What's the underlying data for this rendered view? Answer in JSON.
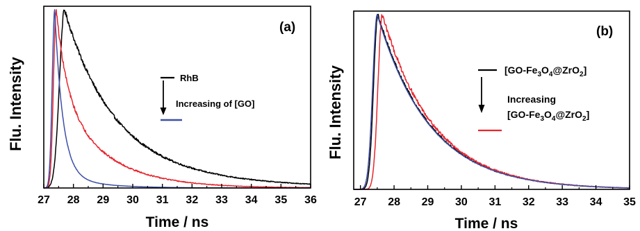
{
  "chart_data": [
    {
      "type": "line",
      "panel_label": "(a)",
      "ylabel": "Flu. Intensity",
      "xlabel": "Time / ns",
      "xlim": [
        27,
        36
      ],
      "xticks": [
        "27",
        "28",
        "29",
        "30",
        "31",
        "32",
        "33",
        "34",
        "35",
        "36"
      ],
      "ylim": [
        0,
        1.02
      ],
      "legend": {
        "placement": "center-right",
        "first": "RhB",
        "arrow_text": "Increasing of [GO]"
      },
      "series": [
        {
          "name": "RhB",
          "color": "#000000",
          "peak": 27.7,
          "rise": 0.24,
          "decay": [
            [
              0.7,
              1.5
            ],
            [
              0.3,
              3.0
            ]
          ],
          "noise": 0.012,
          "x": [
            27.2,
            27.4,
            27.7,
            28.0,
            28.5,
            29.0,
            30.0,
            31.0,
            32.0,
            33.0,
            34.0,
            35.0,
            36.0
          ],
          "values": [
            0.05,
            0.55,
            1.0,
            0.9,
            0.74,
            0.61,
            0.42,
            0.28,
            0.17,
            0.1,
            0.05,
            0.025,
            0.01
          ]
        },
        {
          "name": "",
          "color": "#e8242c",
          "peak": 27.42,
          "rise": 0.13,
          "decay": [
            [
              0.45,
              0.35
            ],
            [
              0.55,
              1.55
            ]
          ],
          "noise": 0.012,
          "x": [
            27.2,
            27.42,
            27.8,
            28.0,
            28.5,
            29.0,
            30.0,
            31.0,
            32.0,
            33.0,
            34.0,
            35.0,
            36.0
          ],
          "values": [
            0.2,
            1.0,
            0.72,
            0.6,
            0.41,
            0.31,
            0.17,
            0.09,
            0.05,
            0.025,
            0.012,
            0.006,
            0.003
          ]
        },
        {
          "name": "",
          "color": "#3d4fa8",
          "peak": 27.37,
          "rise": 0.12,
          "decay": [
            [
              0.92,
              0.27
            ],
            [
              0.08,
              1.2
            ]
          ],
          "noise": 0.004,
          "x": [
            27.2,
            27.37,
            27.6,
            27.8,
            28.0,
            28.5,
            29.0,
            30.0,
            31.0,
            32.0,
            36.0
          ],
          "values": [
            0.25,
            1.0,
            0.52,
            0.32,
            0.2,
            0.08,
            0.04,
            0.012,
            0.004,
            0.002,
            0.0
          ]
        }
      ]
    },
    {
      "type": "line",
      "panel_label": "(b)",
      "ylabel": "Flu. Intensity",
      "xlabel": "Time / ns",
      "xlim": [
        26.8,
        35
      ],
      "xticks": [
        "27",
        "28",
        "29",
        "30",
        "31",
        "32",
        "33",
        "34",
        "35"
      ],
      "ylim": [
        0,
        1.02
      ],
      "legend": {
        "placement": "center-right",
        "first": "[GO-Fe3O4@ZrO2]",
        "arrow_text_line1": "Increasing",
        "arrow_text_line2": "[GO-Fe3O4@ZrO2]"
      },
      "series": [
        {
          "name": "[GO-Fe3O4@ZrO2]",
          "color": "#000000",
          "peak": 27.52,
          "rise": 0.18,
          "decay": [
            [
              1.0,
              1.55
            ]
          ],
          "noise": 0.01,
          "x": [
            27.1,
            27.52,
            28.0,
            29.0,
            30.0,
            31.0,
            32.0,
            33.0,
            34.0,
            35.0
          ],
          "values": [
            0.05,
            0.99,
            0.93,
            0.6,
            0.38,
            0.24,
            0.13,
            0.08,
            0.04,
            0.02
          ]
        },
        {
          "name": "",
          "color": "#e8242c",
          "peak": 27.65,
          "rise": 0.18,
          "decay": [
            [
              1.0,
              1.52
            ]
          ],
          "noise": 0.013,
          "x": [
            27.2,
            27.65,
            28.0,
            29.0,
            30.0,
            31.0,
            32.0,
            33.0,
            34.0,
            35.0
          ],
          "values": [
            0.05,
            0.99,
            0.94,
            0.62,
            0.39,
            0.24,
            0.14,
            0.08,
            0.04,
            0.02
          ]
        },
        {
          "name": "",
          "color": "#3d4fa8",
          "peak": 27.5,
          "rise": 0.19,
          "decay": [
            [
              1.0,
              1.55
            ]
          ],
          "noise": 0.0,
          "x": [
            27.0,
            27.5,
            28.0,
            29.0,
            30.0,
            31.0,
            32.0,
            33.0,
            34.0,
            35.0
          ],
          "values": [
            0.05,
            1.0,
            0.92,
            0.59,
            0.37,
            0.23,
            0.14,
            0.08,
            0.04,
            0.02
          ]
        }
      ]
    }
  ]
}
